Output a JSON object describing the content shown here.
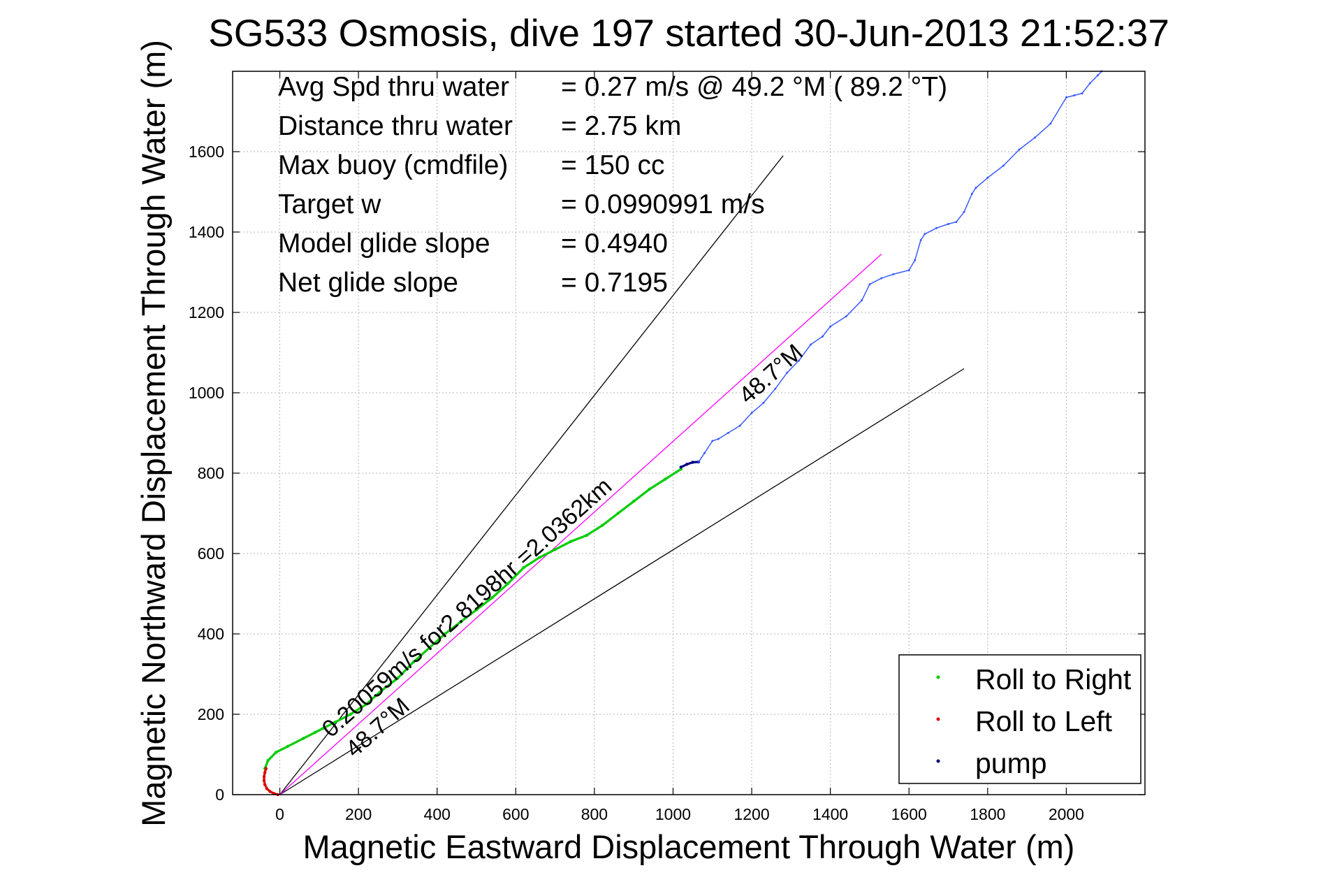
{
  "chart_data": {
    "type": "line",
    "title": "SG533 Osmosis, dive 197 started 30-Jun-2013 21:52:37",
    "xlabel": "Magnetic Eastward Displacement Through Water (m)",
    "ylabel": "Magnetic Northward Displacement Through Water (m)",
    "xlim": [
      -120,
      2200
    ],
    "ylim": [
      0,
      1800
    ],
    "xticks": [
      0,
      200,
      400,
      600,
      800,
      1000,
      1200,
      1400,
      1600,
      1800,
      2000
    ],
    "yticks": [
      0,
      200,
      400,
      600,
      800,
      1000,
      1200,
      1400,
      1600
    ],
    "grid": true,
    "legend_position": "bottom-right",
    "info": [
      {
        "label": "Avg Spd thru water",
        "value": "=  0.27 m/s @  49.2 °M ( 89.2 °T)"
      },
      {
        "label": "Distance thru water",
        "value": "=  2.75 km"
      },
      {
        "label": "Max buoy (cmdfile)",
        "value": "= 150 cc"
      },
      {
        "label": "Target w",
        "value": "= 0.0990991 m/s"
      },
      {
        "label": "Model glide slope",
        "value": "= 0.4940"
      },
      {
        "label": "Net glide slope",
        "value": "= 0.7195"
      }
    ],
    "annotations": [
      {
        "text": "0.20059m/s for2.8198hr =2.0362km",
        "x": 130,
        "y": 140
      },
      {
        "text": "48.7°M",
        "x": 1190,
        "y": 970
      },
      {
        "text": "48.7°M",
        "x": 190,
        "y": 90
      }
    ],
    "reference_lines": [
      {
        "name": "",
        "color": "#000000",
        "x": [
          0,
          1280
        ],
        "y": [
          0,
          1590
        ]
      },
      {
        "name": "",
        "color": "#000000",
        "x": [
          0,
          1740
        ],
        "y": [
          0,
          1060
        ]
      },
      {
        "name": "",
        "color": "#ff00ff",
        "x": [
          0,
          1530
        ],
        "y": [
          0,
          1345
        ]
      }
    ],
    "series": [
      {
        "name": "Roll to Right",
        "color": "#00cc00",
        "x": [
          -38,
          -30,
          -10,
          20,
          60,
          90,
          110,
          140,
          180,
          220,
          260,
          300,
          340,
          380,
          420,
          460,
          500,
          540,
          580,
          620,
          660,
          700,
          740,
          780,
          820,
          860,
          900,
          940,
          980,
          1020
        ],
        "y": [
          65,
          85,
          105,
          120,
          140,
          155,
          165,
          180,
          200,
          225,
          260,
          290,
          330,
          365,
          400,
          430,
          460,
          490,
          525,
          565,
          590,
          610,
          630,
          645,
          670,
          700,
          730,
          760,
          785,
          810
        ]
      },
      {
        "name": "Roll to Left",
        "color": "#dd0000",
        "x": [
          -35,
          -38,
          -40,
          -40,
          -38,
          -33,
          -25,
          -15,
          -5
        ],
        "y": [
          65,
          55,
          45,
          35,
          25,
          15,
          8,
          3,
          0
        ]
      },
      {
        "name": "pump",
        "color": "#000080",
        "x": [
          1020,
          1035,
          1050,
          1065
        ],
        "y": [
          815,
          822,
          827,
          828
        ]
      },
      {
        "name": "",
        "color": "#3a5bff",
        "x": [
          1065,
          1080,
          1100,
          1115,
          1140,
          1170,
          1200,
          1230,
          1260,
          1290,
          1320,
          1350,
          1380,
          1400,
          1440,
          1480,
          1500,
          1530,
          1560,
          1600,
          1615,
          1630,
          1640,
          1670,
          1700,
          1720,
          1740,
          1760,
          1770,
          1800,
          1840,
          1880,
          1920,
          1960,
          2000,
          2020,
          2040,
          2060,
          2080,
          2090
        ],
        "y": [
          828,
          850,
          880,
          885,
          900,
          918,
          950,
          975,
          1010,
          1050,
          1080,
          1120,
          1140,
          1165,
          1190,
          1230,
          1270,
          1285,
          1295,
          1305,
          1330,
          1380,
          1395,
          1410,
          1420,
          1425,
          1450,
          1495,
          1510,
          1535,
          1565,
          1605,
          1635,
          1670,
          1735,
          1740,
          1745,
          1770,
          1790,
          1800
        ]
      }
    ],
    "legend": [
      {
        "label": "Roll to Right",
        "color": "#00cc00"
      },
      {
        "label": "Roll to Left",
        "color": "#dd0000"
      },
      {
        "label": "pump",
        "color": "#000080"
      }
    ]
  }
}
